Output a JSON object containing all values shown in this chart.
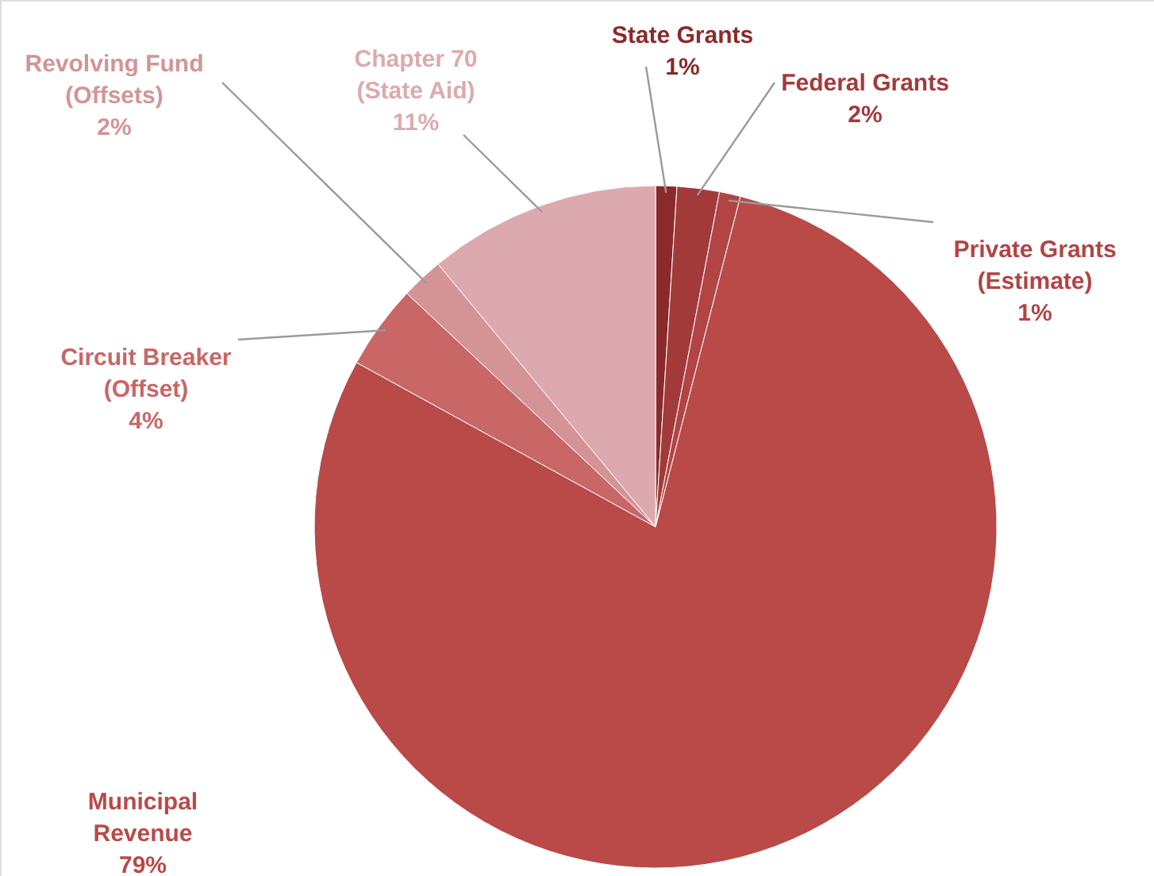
{
  "chart_data": {
    "type": "pie",
    "categories": [
      "State Grants",
      "Federal Grants",
      "Private Grants (Estimate)",
      "Municipal Revenue",
      "Circuit Breaker (Offset)",
      "Revolving Fund (Offsets)",
      "Chapter 70 (State Aid)"
    ],
    "values": [
      1,
      2,
      1,
      79,
      4,
      2,
      11
    ],
    "value_labels": [
      "1%",
      "2%",
      "1%",
      "79%",
      "4%",
      "2%",
      "11%"
    ],
    "colors": [
      "#8b2a2a",
      "#a33a3a",
      "#b24444",
      "#b94a48",
      "#c96666",
      "#d49496",
      "#dcaaae"
    ]
  }
}
